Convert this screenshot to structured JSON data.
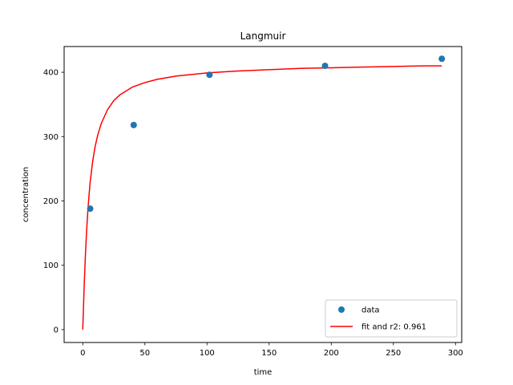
{
  "chart_data": {
    "type": "scatter",
    "title": "Langmuir",
    "xlabel": "time",
    "ylabel": "concentration",
    "xlim": [
      -15,
      305
    ],
    "ylim": [
      -20,
      440
    ],
    "xticks": [
      0,
      50,
      100,
      150,
      200,
      250,
      300
    ],
    "yticks": [
      0,
      100,
      200,
      300,
      400
    ],
    "grid": false,
    "legend_position": "lower-right",
    "series": [
      {
        "name": "data",
        "kind": "scatter",
        "color": "#1f77b4",
        "x": [
          6,
          41,
          102,
          195,
          289
        ],
        "y": [
          188,
          318,
          396,
          410,
          421
        ]
      },
      {
        "name": "fit and r2: 0.961",
        "kind": "line",
        "color": "#ff0000",
        "x": [
          0,
          1,
          2,
          3,
          4,
          5,
          6,
          8,
          10,
          12,
          15,
          20,
          25,
          30,
          40,
          50,
          60,
          75,
          90,
          100,
          125,
          150,
          175,
          200,
          225,
          250,
          275,
          289
        ],
        "y": [
          0,
          60,
          110,
          150,
          182,
          208,
          230,
          262,
          285,
          302,
          321,
          342,
          356,
          365,
          377,
          384,
          389,
          394,
          397,
          399,
          402,
          404,
          406,
          407,
          408,
          409,
          410,
          410
        ]
      }
    ]
  }
}
